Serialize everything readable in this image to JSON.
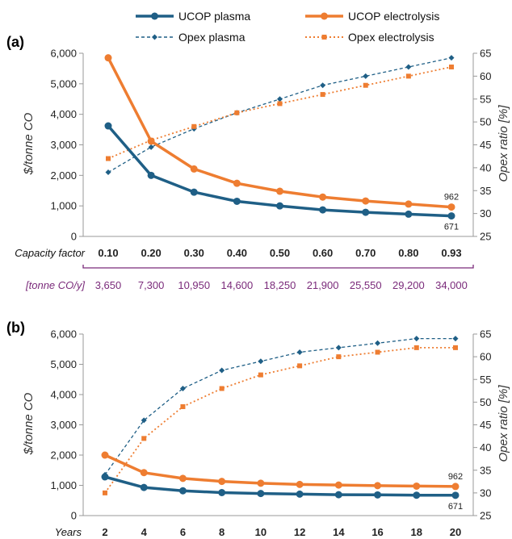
{
  "colors": {
    "plasma": "#1f5f86",
    "electrolysis": "#ee7d31",
    "capacity_row": "#7a2a7a",
    "axis": "#999999"
  },
  "legend": {
    "ucop_plasma": "UCOP plasma",
    "ucop_electrolysis": "UCOP electrolysis",
    "opex_plasma": "Opex plasma",
    "opex_electrolysis": "Opex electrolysis"
  },
  "chart_data": [
    {
      "type": "line",
      "panel": "(a)",
      "x_row_label": "Capacity factor",
      "x": [
        "0.10",
        "0.20",
        "0.30",
        "0.40",
        "0.50",
        "0.60",
        "0.70",
        "0.80",
        "0.93"
      ],
      "second_row_label": "[tonne CO/y]",
      "second_row": [
        "3,650",
        "7,300",
        "10,950",
        "14,600",
        "18,250",
        "21,900",
        "25,550",
        "29,200",
        "34,000"
      ],
      "ylabel": "$/tonne CO",
      "ylim": [
        0,
        6000
      ],
      "yticks": [
        "6,000",
        "5,000",
        "4,000",
        "3,000",
        "2,000",
        "1,000",
        "0"
      ],
      "y2label": "Opex ratio [%]",
      "y2lim": [
        25,
        65
      ],
      "y2ticks": [
        "65",
        "60",
        "55",
        "50",
        "45",
        "40",
        "35",
        "30",
        "25"
      ],
      "series": [
        {
          "name": "UCOP plasma",
          "axis": "left",
          "values": [
            3620,
            2000,
            1450,
            1150,
            1000,
            870,
            790,
            730,
            671
          ]
        },
        {
          "name": "UCOP electrolysis",
          "axis": "left",
          "values": [
            5850,
            3120,
            2210,
            1740,
            1480,
            1290,
            1160,
            1060,
            962
          ]
        },
        {
          "name": "Opex plasma",
          "axis": "right",
          "values": [
            39,
            44.5,
            48.5,
            52,
            55,
            58,
            60,
            62,
            64
          ]
        },
        {
          "name": "Opex electrolysis",
          "axis": "right",
          "values": [
            42,
            46,
            49,
            52,
            54,
            56,
            58,
            60,
            62
          ]
        }
      ],
      "end_labels": {
        "electrolysis": "962",
        "plasma": "671"
      }
    },
    {
      "type": "line",
      "panel": "(b)",
      "x_row_label": "Years",
      "x": [
        "2",
        "4",
        "6",
        "8",
        "10",
        "12",
        "14",
        "16",
        "18",
        "20"
      ],
      "ylabel": "$/tonne CO",
      "ylim": [
        0,
        6000
      ],
      "yticks": [
        "6,000",
        "5,000",
        "4,000",
        "3,000",
        "2,000",
        "1,000",
        "0"
      ],
      "y2label": "Opex ratio [%]",
      "y2lim": [
        25,
        65
      ],
      "y2ticks": [
        "65",
        "60",
        "55",
        "50",
        "45",
        "40",
        "35",
        "30",
        "25"
      ],
      "series": [
        {
          "name": "UCOP plasma",
          "axis": "left",
          "values": [
            1280,
            930,
            820,
            760,
            730,
            710,
            690,
            685,
            675,
            671
          ]
        },
        {
          "name": "UCOP electrolysis",
          "axis": "left",
          "values": [
            2000,
            1420,
            1230,
            1130,
            1070,
            1030,
            1010,
            990,
            975,
            962
          ]
        },
        {
          "name": "Opex plasma",
          "axis": "right",
          "values": [
            34,
            46,
            53,
            57,
            59,
            61,
            62,
            63,
            64,
            64
          ]
        },
        {
          "name": "Opex electrolysis",
          "axis": "right",
          "values": [
            30,
            42,
            49,
            53,
            56,
            58,
            60,
            61,
            62,
            62
          ]
        }
      ],
      "end_labels": {
        "electrolysis": "962",
        "plasma": "671"
      }
    }
  ]
}
